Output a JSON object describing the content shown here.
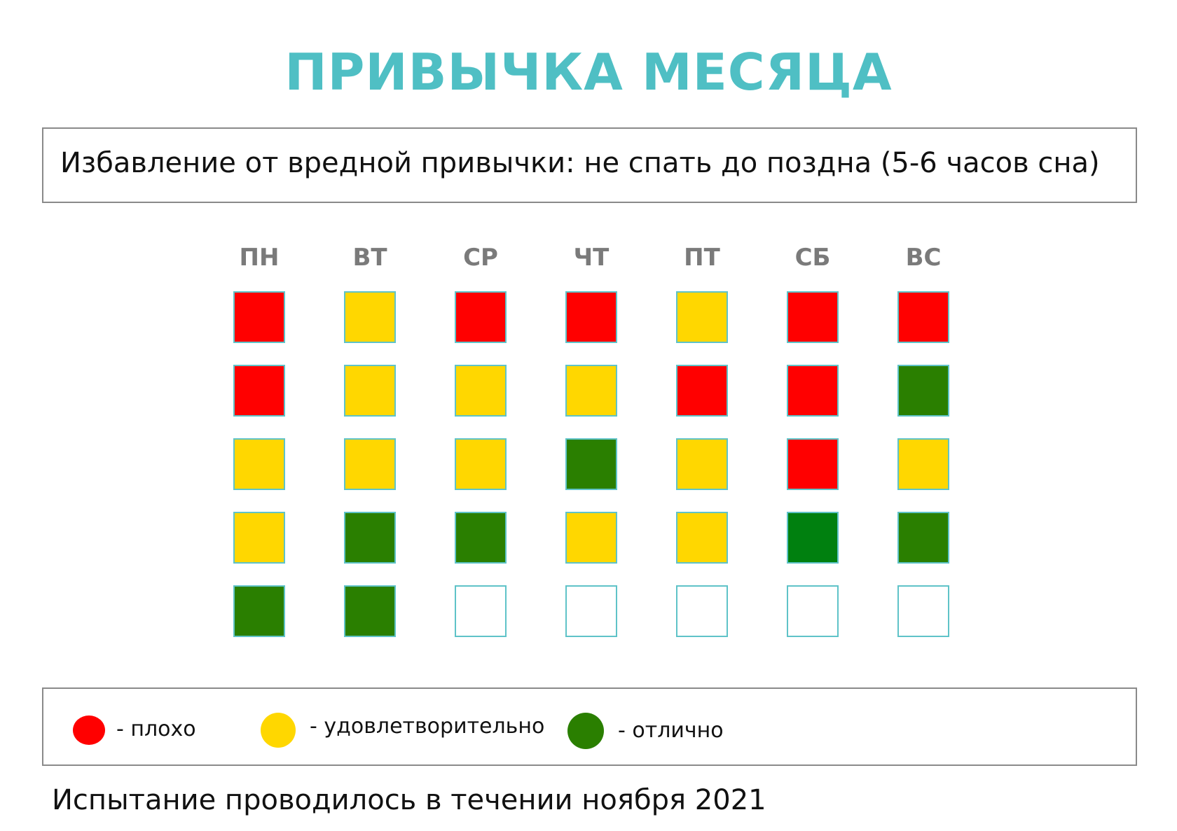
{
  "title": "ПРИВЫЧКА МЕСЯЦА",
  "habit": "Избавление от вредной привычки: не спать до поздна (5-6 часов сна)",
  "days": [
    "ПН",
    "ВТ",
    "СР",
    "ЧТ",
    "ПТ",
    "СБ",
    "ВС"
  ],
  "colors": {
    "bad": "#ff0000",
    "ok": "#ffd700",
    "good": "#2a7f00",
    "good_dark": "#00800f",
    "empty": "#ffffff"
  },
  "grid": [
    [
      "bad",
      "ok",
      "bad",
      "bad",
      "ok",
      "bad",
      "bad"
    ],
    [
      "bad",
      "ok",
      "ok",
      "ok",
      "bad",
      "bad",
      "good"
    ],
    [
      "ok",
      "ok",
      "ok",
      "good",
      "ok",
      "bad",
      "ok"
    ],
    [
      "ok",
      "good",
      "good",
      "ok",
      "ok",
      "good_dark",
      "good"
    ],
    [
      "good",
      "good",
      "empty",
      "empty",
      "empty",
      "empty",
      "empty"
    ]
  ],
  "legend": [
    {
      "status": "bad",
      "label": "- плохо"
    },
    {
      "status": "ok",
      "label": "- удовлетворительно"
    },
    {
      "status": "good",
      "label": "- отлично"
    }
  ],
  "footer": "Испытание проводилось в течении ноября 2021"
}
